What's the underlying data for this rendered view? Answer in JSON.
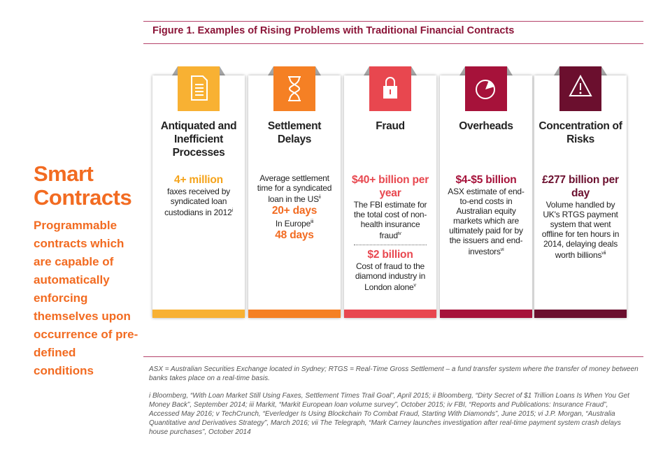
{
  "figure_title": "Figure 1. Examples of Rising Problems with Traditional Financial Contracts",
  "sidebar": {
    "heading": "Smart Contracts",
    "text": "Programmable contracts which are capable of automatically enforcing themselves upon occurrence of pre-defined conditions"
  },
  "cards": [
    {
      "title": "Antiquated and Inefficient Processes",
      "sections": [
        [
          {
            "text": "4+ million",
            "highlight": true
          },
          {
            "text": "faxes received by syndicated loan custodians in 2012",
            "sup": "i"
          }
        ]
      ]
    },
    {
      "title": "Settlement Delays",
      "sections": [
        [
          {
            "text": "Average settlement time for a syndicated loan in the US",
            "sup": "ii"
          },
          {
            "text": "20+ days",
            "highlight": true
          },
          {
            "text": "In Europe",
            "sup": "iii"
          },
          {
            "text": "48 days",
            "highlight": true
          }
        ]
      ]
    },
    {
      "title": "Fraud",
      "sections": [
        [
          {
            "text": "$40+ billion per year",
            "highlight": true
          },
          {
            "text": "The FBI estimate for the total cost of non-health insurance fraud",
            "sup": "iv"
          }
        ],
        [
          {
            "text": "$2 billion",
            "highlight": true
          },
          {
            "text": "Cost of fraud to the diamond industry in London alone",
            "sup": "v"
          }
        ]
      ]
    },
    {
      "title": "Overheads",
      "sections": [
        [
          {
            "text": "$4-$5 billion",
            "highlight": true
          },
          {
            "text": "ASX estimate of end-to-end costs in Australian equity markets which are ultimately paid for by the issuers and end-investors",
            "sup": "vi"
          }
        ]
      ]
    },
    {
      "title": "Concentration of Risks",
      "sections": [
        [
          {
            "text": "£277 billion per day",
            "highlight": true
          },
          {
            "text": "Volume handled by UK's RTGS payment system that went offline for ten hours in 2014, delaying deals worth billions",
            "sup": "vii"
          }
        ]
      ]
    }
  ],
  "footnotes": [
    "ASX = Australian Securities Exchange located in Sydney; RTGS = Real-Time Gross Settlement – a fund transfer system where the transfer of money between banks takes place on a real-time basis.",
    "i Bloomberg, “With Loan Market Still Using Faxes, Settlement Times Trail Goal”, April 2015; ii Bloomberg, “Dirty Secret of $1 Trillion Loans Is When You Get Money Back”, September 2014; iii Markit, “Markit European loan volume survey”, October 2015; iv FBI, “Reports and Publications: Insurance Fraud”, Accessed May 2016; v TechCrunch, “Everledger Is Using Blockchain To Combat Fraud, Starting With Diamonds”, June 2015; vi J.P. Morgan, “Australia Quantitative and Derivatives Strategy”, March 2016; vii The Telegraph, “Mark Carney launches investigation after real-time payment system crash delays house purchases”, October 2014"
  ]
}
